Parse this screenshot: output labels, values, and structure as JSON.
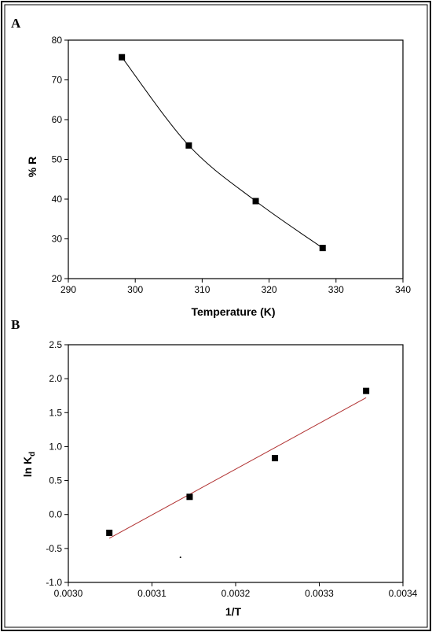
{
  "chart_data": [
    {
      "panel": "A",
      "type": "line",
      "xlabel": "Temperature (K)",
      "ylabel": "% R",
      "xlim": [
        290,
        340
      ],
      "ylim": [
        20,
        80
      ],
      "xticks": [
        290,
        300,
        310,
        320,
        330,
        340
      ],
      "yticks": [
        20,
        30,
        40,
        50,
        60,
        70,
        80
      ],
      "markers": "square",
      "line_color": "#000000",
      "x": [
        298,
        308,
        318,
        328
      ],
      "y": [
        75.7,
        53.5,
        39.5,
        27.7
      ]
    },
    {
      "panel": "B",
      "type": "scatter",
      "xlabel": "1/T",
      "ylabel": "ln K",
      "ylabel_sub": "d",
      "xlim": [
        0.003,
        0.0034
      ],
      "ylim": [
        -1.0,
        2.5
      ],
      "xticks": [
        "0.0030",
        "0.0031",
        "0.0032",
        "0.0033",
        "0.0034"
      ],
      "yticks": [
        "2.5",
        "2.0",
        "1.5",
        "1.0",
        "0.5",
        "0.0",
        "-0.5",
        "-1.0"
      ],
      "markers": "square",
      "fit_line_color": "#b03030",
      "x": [
        0.003049,
        0.003145,
        0.003247,
        0.003356
      ],
      "y": [
        -0.27,
        0.26,
        0.83,
        1.82
      ],
      "fit": {
        "x": [
          0.003049,
          0.003356
        ],
        "y": [
          -0.35,
          1.72
        ]
      },
      "stray_point": {
        "x": 0.003134,
        "y": -0.63
      }
    }
  ]
}
